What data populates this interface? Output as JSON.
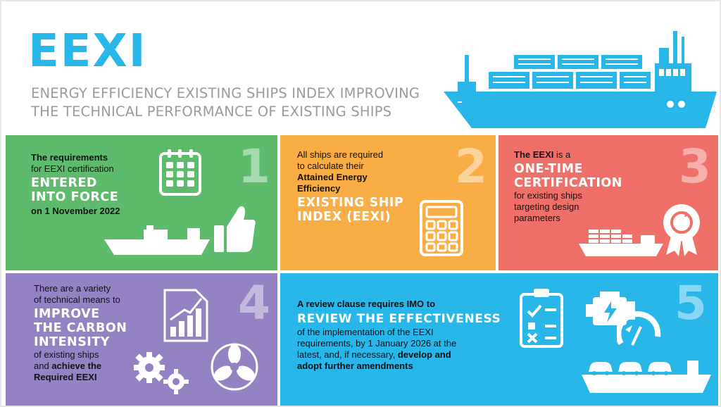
{
  "header": {
    "title": "EEXI",
    "subtitle_line1": "ENERGY EFFICIENCY EXISTING SHIPS INDEX IMPROVING",
    "subtitle_line2": "THE TECHNICAL PERFORMANCE OF EXISTING SHIPS"
  },
  "colors": {
    "accent": "#29b6e8",
    "green": "#5dbb6b",
    "orange": "#f8ad45",
    "red": "#ef7068",
    "purple": "#9582c2",
    "blue": "#29b6e8"
  },
  "panels": [
    {
      "number": "1",
      "line1": "The requirements",
      "line2": "for EEXI certification",
      "highlight1": "ENTERED",
      "highlight2": "INTO FORCE",
      "line3": "on 1 November 2022",
      "icons": [
        "calendar-icon",
        "thumbs-up-icon",
        "cargo-ship-icon"
      ]
    },
    {
      "number": "2",
      "line1": "All ships are required",
      "line2": "to calculate their",
      "line3": "Attained Energy",
      "line4": "Efficiency",
      "highlight1": "EXISTING SHIP",
      "highlight2": "INDEX (EEXI)",
      "icons": [
        "calculator-icon"
      ]
    },
    {
      "number": "3",
      "line1_bold": "The EEXI",
      "line1_rest": " is a",
      "highlight1": "ONE-TIME",
      "highlight2": "CERTIFICATION",
      "line2": "for existing ships",
      "line3": "targeting design",
      "line4": "parameters",
      "icons": [
        "award-badge-icon",
        "container-ship-icon"
      ]
    },
    {
      "number": "4",
      "line1": "There are a  variety",
      "line2": "of technical means to",
      "highlight1": "IMPROVE",
      "highlight2": "THE CARBON",
      "highlight3": "INTENSITY",
      "line3": "of existing ships",
      "line4_pre": "and ",
      "line4_bold": "achieve the",
      "line5": "Required EEXI",
      "icons": [
        "growth-chart-icon",
        "gears-icon",
        "propeller-icon"
      ]
    },
    {
      "number": "5",
      "line1": "A review clause requires IMO to",
      "highlight1": "REVIEW THE EFFECTIVENESS",
      "line2": "of the implementation of the EEXI",
      "line3": "requirements, by 1 January 2026 at the",
      "line4_pre": "latest, and, if necessary, ",
      "line4_bold": "develop and",
      "line5": "adopt further amendments",
      "icons": [
        "checklist-icon",
        "engine-icon",
        "gauge-icon",
        "car-carrier-icon"
      ]
    }
  ]
}
